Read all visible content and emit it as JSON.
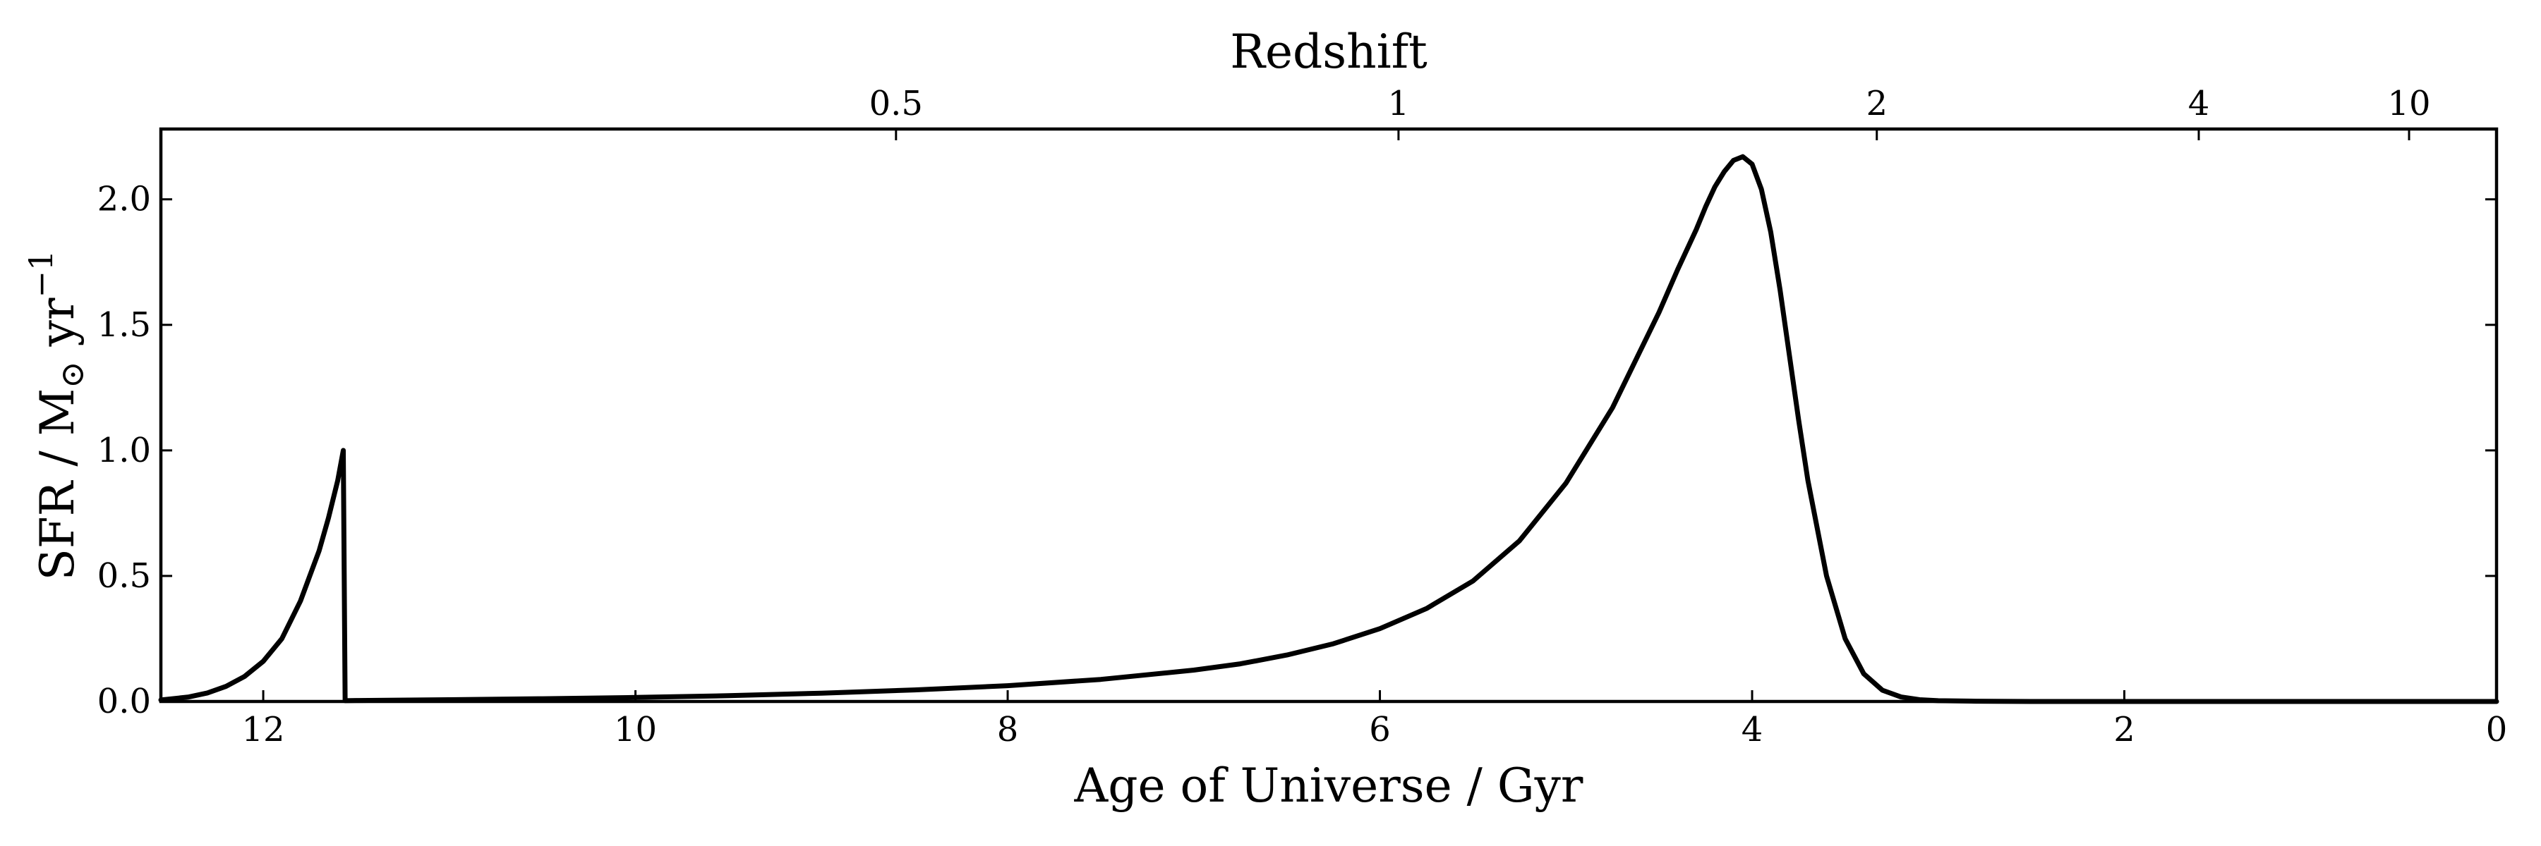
{
  "chart_data": {
    "type": "line",
    "title": "",
    "xlabel": "Age of Universe / Gyr",
    "ylabel_parts": {
      "main": "SFR / M",
      "sub": "⊙",
      "mid": " yr",
      "sup": "−1"
    },
    "top_xlabel": "Redshift",
    "xlim": [
      12.55,
      0
    ],
    "ylim": [
      0,
      2.28
    ],
    "x_ticks": [
      12,
      10,
      8,
      6,
      4,
      2,
      0
    ],
    "x_tick_labels": [
      "12",
      "10",
      "8",
      "6",
      "4",
      "2",
      "0"
    ],
    "y_ticks": [
      0.0,
      0.5,
      1.0,
      1.5,
      2.0
    ],
    "y_tick_labels": [
      "0.0",
      "0.5",
      "1.0",
      "1.5",
      "2.0"
    ],
    "top_ticks": [
      {
        "label": "0.5",
        "age": 8.6
      },
      {
        "label": "1",
        "age": 5.9
      },
      {
        "label": "2",
        "age": 3.33
      },
      {
        "label": "4",
        "age": 1.6
      },
      {
        "label": "10",
        "age": 0.47
      }
    ],
    "grid": false,
    "series": [
      {
        "x": [
          12.55,
          12.4,
          12.3,
          12.2,
          12.1,
          12.0,
          11.9,
          11.8,
          11.75,
          11.7,
          11.65,
          11.6,
          11.57,
          11.565,
          11.56,
          11.5,
          11.0,
          10.5,
          10.0,
          9.5,
          9.0,
          8.5,
          8.0,
          7.5,
          7.0,
          6.75,
          6.5,
          6.25,
          6.0,
          5.75,
          5.5,
          5.25,
          5.0,
          4.75,
          4.5,
          4.4,
          4.3,
          4.25,
          4.2,
          4.15,
          4.1,
          4.05,
          4.0,
          3.95,
          3.9,
          3.85,
          3.8,
          3.75,
          3.7,
          3.6,
          3.5,
          3.4,
          3.3,
          3.2,
          3.1,
          3.0,
          2.8,
          2.5,
          2.0,
          1.0,
          0.0
        ],
        "y": [
          0.006,
          0.018,
          0.034,
          0.06,
          0.1,
          0.16,
          0.25,
          0.4,
          0.5,
          0.6,
          0.73,
          0.88,
          1.0,
          0.5,
          0.003,
          0.004,
          0.007,
          0.011,
          0.016,
          0.023,
          0.033,
          0.046,
          0.063,
          0.088,
          0.125,
          0.15,
          0.185,
          0.23,
          0.29,
          0.37,
          0.48,
          0.64,
          0.87,
          1.17,
          1.55,
          1.72,
          1.88,
          1.97,
          2.05,
          2.11,
          2.155,
          2.17,
          2.14,
          2.04,
          1.87,
          1.64,
          1.38,
          1.12,
          0.88,
          0.5,
          0.25,
          0.11,
          0.045,
          0.018,
          0.007,
          0.003,
          0.001,
          0.0,
          0.0,
          0.0,
          0.0
        ]
      }
    ]
  }
}
